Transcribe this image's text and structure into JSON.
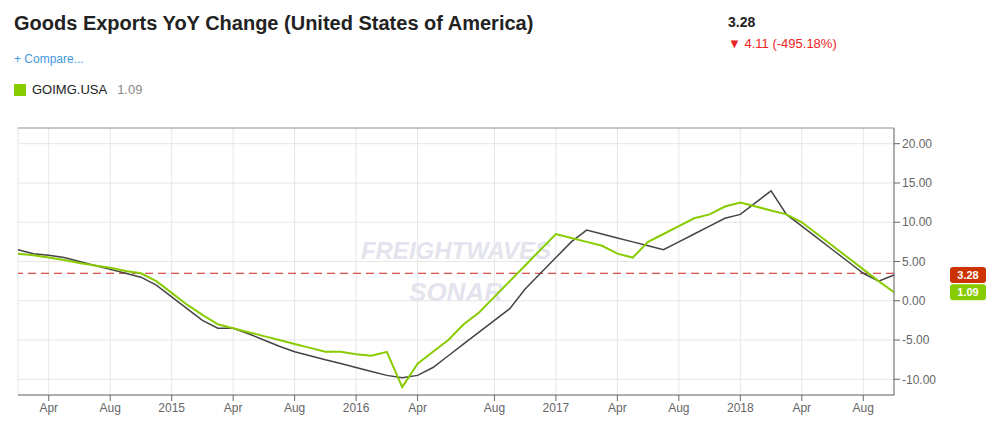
{
  "chart_data": {
    "type": "line",
    "title": "Goods Exports YoY Change (United States of America)",
    "annotations": [
      {
        "text": "3.28"
      },
      {
        "text": "▼ 4.11 (-495.18%)",
        "color": "#ee2222"
      },
      {
        "text": "+ Compare...",
        "color": "#4499dd"
      },
      {
        "text": "FREIGHTWAVES"
      },
      {
        "text": "SONAR"
      }
    ],
    "categories": [
      null,
      null,
      "Apr",
      null,
      null,
      null,
      "Aug",
      null,
      null,
      null,
      "2015",
      null,
      null,
      null,
      "Apr",
      null,
      null,
      null,
      "Aug",
      null,
      null,
      null,
      "2016",
      null,
      null,
      null,
      "Apr",
      null,
      null,
      null,
      null,
      "Aug",
      null,
      null,
      null,
      "2017",
      null,
      null,
      null,
      "Apr",
      null,
      null,
      null,
      "Aug",
      null,
      null,
      null,
      "2018",
      null,
      null,
      null,
      "Apr",
      null,
      null,
      null,
      "Aug",
      null,
      null
    ],
    "series": [
      {
        "color": "#444444",
        "values": [
          6.5,
          6.0,
          5.8,
          5.5,
          5.0,
          4.5,
          4.0,
          3.5,
          3.0,
          2.0,
          0.5,
          -1.0,
          -2.5,
          -3.5,
          -3.5,
          -4.2,
          -5.0,
          -5.8,
          -6.5,
          -7.0,
          -7.5,
          -8.0,
          -8.5,
          -9.0,
          -9.5,
          -9.8,
          -9.5,
          -8.5,
          -7.0,
          -5.5,
          -4.0,
          -2.5,
          -1.0,
          1.5,
          3.5,
          5.5,
          7.5,
          9.0,
          8.5,
          8.0,
          7.5,
          7.0,
          6.5,
          7.5,
          8.5,
          9.5,
          10.5,
          11.0,
          12.5,
          14.0,
          11.0,
          9.5,
          8.0,
          6.5,
          5.0,
          3.5,
          2.5,
          3.28
        ],
        "end_label": "3.28",
        "end_label_color": "#cc3300"
      },
      {
        "name": "GOIMG.USA",
        "color": "#88cc00",
        "values": [
          6.0,
          5.8,
          5.5,
          5.2,
          4.8,
          4.5,
          4.2,
          3.8,
          3.5,
          2.5,
          1.0,
          -0.5,
          -1.8,
          -3.0,
          -3.5,
          -4.0,
          -4.5,
          -5.0,
          -5.5,
          -6.0,
          -6.5,
          -6.5,
          -6.8,
          -7.0,
          -6.5,
          -11.0,
          -8.0,
          -6.5,
          -5.0,
          -3.0,
          -1.5,
          0.5,
          2.5,
          4.5,
          6.5,
          8.5,
          8.0,
          7.5,
          7.0,
          6.0,
          5.5,
          7.5,
          8.5,
          9.5,
          10.5,
          11.0,
          12.0,
          12.5,
          12.0,
          11.5,
          11.0,
          10.0,
          8.5,
          7.0,
          5.5,
          4.0,
          2.5,
          1.09
        ],
        "legend_value": "1.09",
        "end_label": "1.09"
      }
    ],
    "reference_line": {
      "y": 3.5,
      "color": "#cc2222",
      "line_style": "dashed"
    },
    "ylim": [
      -12,
      22
    ],
    "yticks": [
      {
        "value": -10,
        "label": "-10.00"
      },
      {
        "value": -5,
        "label": "-5.00"
      },
      {
        "value": 0,
        "label": "0.00"
      },
      {
        "value": 5,
        "label": "5.00"
      },
      {
        "value": 10,
        "label": "10.00"
      },
      {
        "value": 15,
        "label": "15.00"
      },
      {
        "value": 20,
        "label": "20.00"
      }
    ],
    "grid": true,
    "legend": "upper left"
  }
}
